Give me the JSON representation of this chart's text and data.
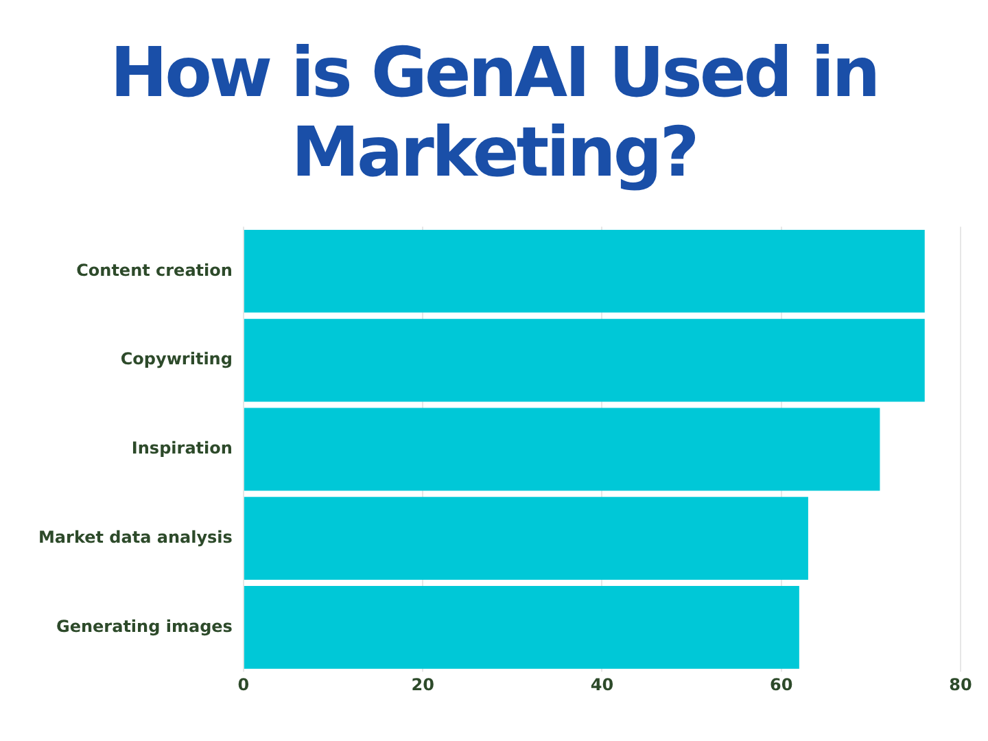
{
  "chart_data": {
    "type": "bar",
    "orientation": "horizontal",
    "title": "How is GenAI Used in Marketing?",
    "categories": [
      "Content creation",
      "Copywriting",
      "Inspiration",
      "Market data analysis",
      "Generating images"
    ],
    "values": [
      76,
      76,
      71,
      63,
      62
    ],
    "color": "#00c8d7",
    "xlim": [
      0,
      80
    ],
    "xticks": [
      0,
      20,
      40,
      60,
      80
    ],
    "grid": "x"
  }
}
